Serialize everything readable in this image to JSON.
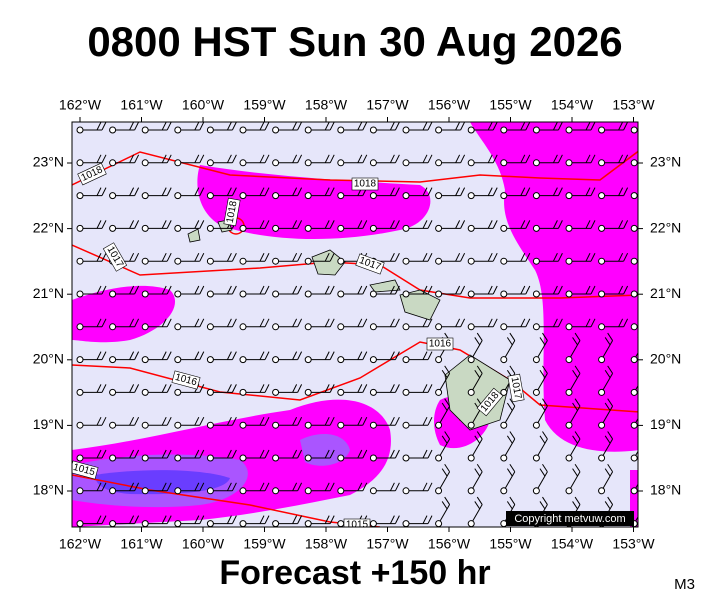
{
  "header": {
    "title": "0800 HST Sun 30 Aug 2026"
  },
  "map": {
    "lon_labels": [
      "162°W",
      "161°W",
      "160°W",
      "159°W",
      "158°W",
      "157°W",
      "156°W",
      "155°W",
      "154°W",
      "153°W"
    ],
    "lat_labels": [
      "23°N",
      "22°N",
      "21°N",
      "20°N",
      "19°N",
      "18°N"
    ],
    "isobar_labels": [
      "1018",
      "1018",
      "1018",
      "1017",
      "1017",
      "1016",
      "1016",
      "1015",
      "1018",
      "1017",
      "1015"
    ],
    "copyright": "Copyright metvuw.com"
  },
  "footer": {
    "forecast": "Forecast +150 hr",
    "model": "M3"
  }
}
